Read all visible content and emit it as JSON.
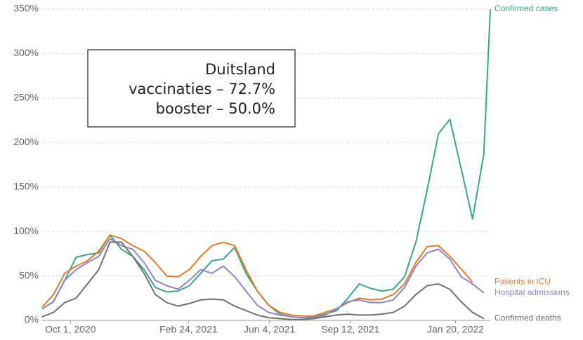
{
  "chart_data": {
    "type": "line",
    "annotation": [
      "Duitsland",
      "vaccinaties – 72.7%",
      "booster – 50.0%"
    ],
    "x": [
      "2020-08-27",
      "2020-09-10",
      "2020-09-24",
      "2020-10-08",
      "2020-10-22",
      "2020-11-05",
      "2020-11-19",
      "2020-12-03",
      "2020-12-17",
      "2020-12-31",
      "2021-01-14",
      "2021-01-28",
      "2021-02-11",
      "2021-02-25",
      "2021-03-11",
      "2021-03-25",
      "2021-04-08",
      "2021-04-22",
      "2021-05-06",
      "2021-05-20",
      "2021-06-03",
      "2021-06-17",
      "2021-07-01",
      "2021-07-15",
      "2021-07-29",
      "2021-08-12",
      "2021-08-26",
      "2021-09-09",
      "2021-09-23",
      "2021-10-07",
      "2021-10-21",
      "2021-11-04",
      "2021-11-18",
      "2021-12-02",
      "2021-12-16",
      "2021-12-30",
      "2022-01-13",
      "2022-01-27",
      "2022-02-10",
      "2022-02-24",
      "2022-03-04"
    ],
    "series": [
      {
        "name": "Confirmed cases",
        "color": "#3aa58a",
        "values": [
          13,
          21,
          45,
          71,
          74,
          76,
          96,
          80,
          72,
          57,
          37,
          32,
          33,
          39,
          53,
          67,
          69,
          82,
          53,
          33,
          17,
          7,
          4,
          3,
          4,
          7,
          11,
          25,
          41,
          36,
          33,
          35,
          49,
          88,
          147,
          210,
          226,
          171,
          114,
          187,
          350
        ]
      },
      {
        "name": "Patients in ICU",
        "color": "#e07b2a",
        "values": [
          15,
          29,
          53,
          61,
          67,
          78,
          96,
          92,
          84,
          78,
          65,
          50,
          49,
          57,
          72,
          84,
          88,
          84,
          57,
          33,
          17,
          9,
          6,
          5,
          5,
          9,
          13,
          20,
          25,
          23,
          24,
          29,
          41,
          65,
          83,
          84,
          72,
          58,
          43,
          null,
          null
        ]
      },
      {
        "name": "Hospital admissions",
        "color": "#8e84c8",
        "values": [
          13,
          21,
          45,
          57,
          65,
          72,
          92,
          84,
          80,
          65,
          45,
          39,
          35,
          45,
          57,
          53,
          61,
          49,
          33,
          17,
          9,
          6,
          4,
          3,
          3,
          6,
          13,
          21,
          23,
          20,
          20,
          23,
          37,
          61,
          76,
          80,
          69,
          49,
          41,
          31,
          null
        ]
      },
      {
        "name": "Confirmed deaths",
        "color": "#707070",
        "values": [
          4,
          9,
          20,
          25,
          41,
          57,
          88,
          88,
          72,
          53,
          29,
          20,
          16,
          19,
          23,
          24,
          23,
          16,
          11,
          6,
          3,
          2,
          1,
          1,
          2,
          4,
          6,
          7,
          6,
          6,
          7,
          9,
          16,
          29,
          39,
          41,
          35,
          21,
          9,
          2,
          null
        ]
      }
    ],
    "xlim": [
      "2020-08-27",
      "2022-03-04"
    ],
    "xticks": [
      {
        "value": "2020-10-01",
        "label": "Oct 1, 2020"
      },
      {
        "value": "2021-02-24",
        "label": "Feb 24, 2021"
      },
      {
        "value": "2021-06-04",
        "label": "Jun 4, 2021"
      },
      {
        "value": "2021-09-12",
        "label": "Sep 12, 2021"
      },
      {
        "value": "2022-01-20",
        "label": "Jan 20, 2022"
      }
    ],
    "ylim": [
      0,
      350
    ],
    "yticks": [
      {
        "value": 0,
        "label": "0%"
      },
      {
        "value": 50,
        "label": "50%"
      },
      {
        "value": 100,
        "label": "100%"
      },
      {
        "value": 150,
        "label": "150%"
      },
      {
        "value": 200,
        "label": "200%"
      },
      {
        "value": 250,
        "label": "250%"
      },
      {
        "value": 300,
        "label": "300%"
      },
      {
        "value": 350,
        "label": "350%"
      }
    ],
    "grid": true
  }
}
